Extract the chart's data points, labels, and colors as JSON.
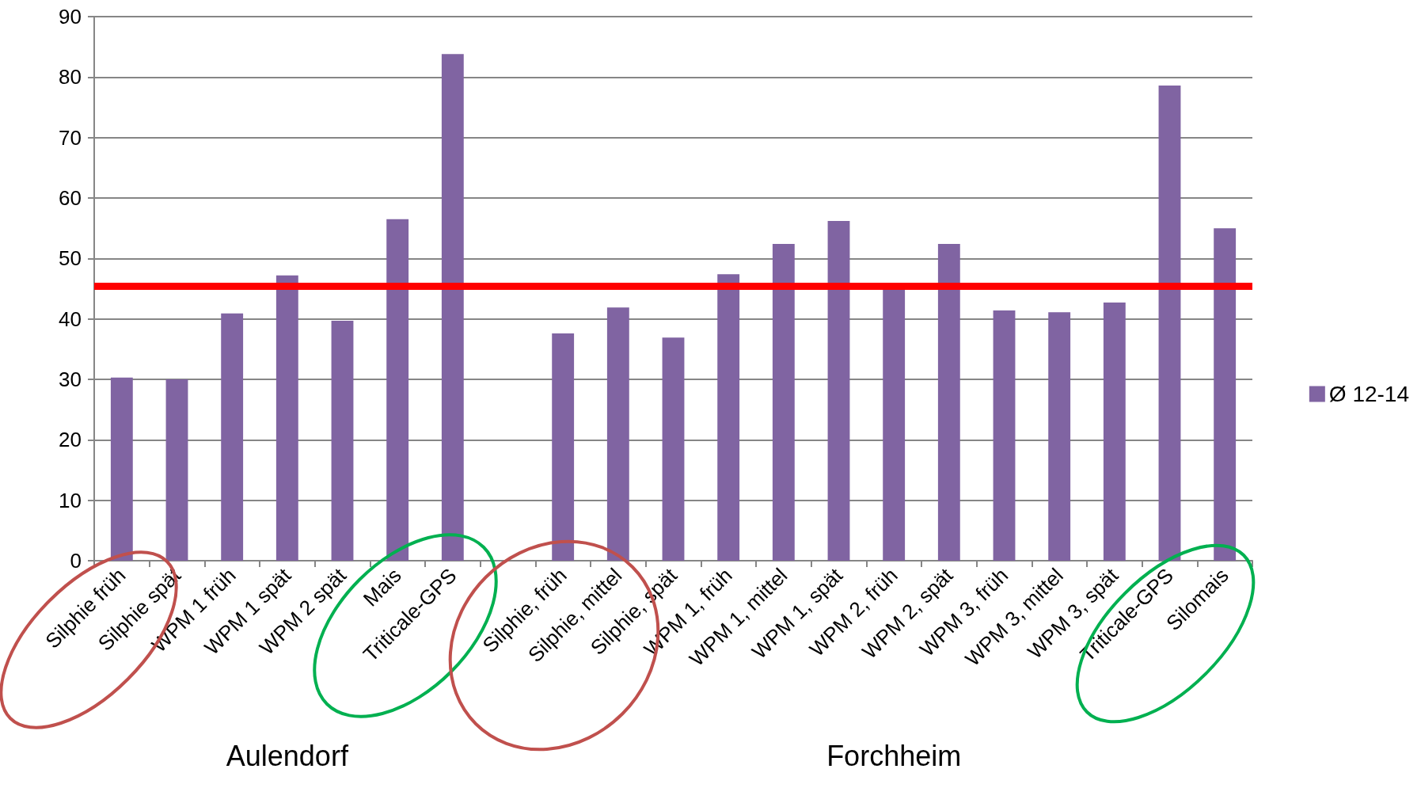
{
  "chart_data": {
    "type": "bar",
    "categories": [
      "Silphie früh",
      "Silphie spät",
      "WPM 1 früh",
      "WPM 1 spät",
      "WPM 2 spät",
      "Mais",
      "Triticale-GPS",
      null,
      "Silphie, früh",
      "Silphie, mittel",
      "Silphie, spät",
      "WPM 1, früh",
      "WPM 1, mittel",
      "WPM 1, spät",
      "WPM 2, früh",
      "WPM 2, spät",
      "WPM 3, früh",
      "WPM 3, mittel",
      "WPM 3, spät",
      "Triticale-GPS",
      "Silomais"
    ],
    "series": [
      {
        "name": "Ø 12-14",
        "color": "#8064a2",
        "values": [
          30.3,
          30.0,
          40.9,
          47.2,
          39.7,
          56.5,
          83.8,
          null,
          37.6,
          41.9,
          36.9,
          47.4,
          52.4,
          56.2,
          45,
          52.4,
          41.4,
          41.1,
          42.7,
          78.6,
          55.0
        ]
      }
    ],
    "ylim": [
      0,
      90
    ],
    "yticks": [
      0,
      10,
      20,
      30,
      40,
      50,
      60,
      70,
      80,
      90
    ],
    "grid": "y",
    "legend": "right",
    "ref_lines": [
      {
        "axis": "y",
        "value": 45.4,
        "color": "#ff0000",
        "line_style": "solid"
      }
    ],
    "annotations": [
      "Aulendorf",
      "Forchheim"
    ]
  }
}
